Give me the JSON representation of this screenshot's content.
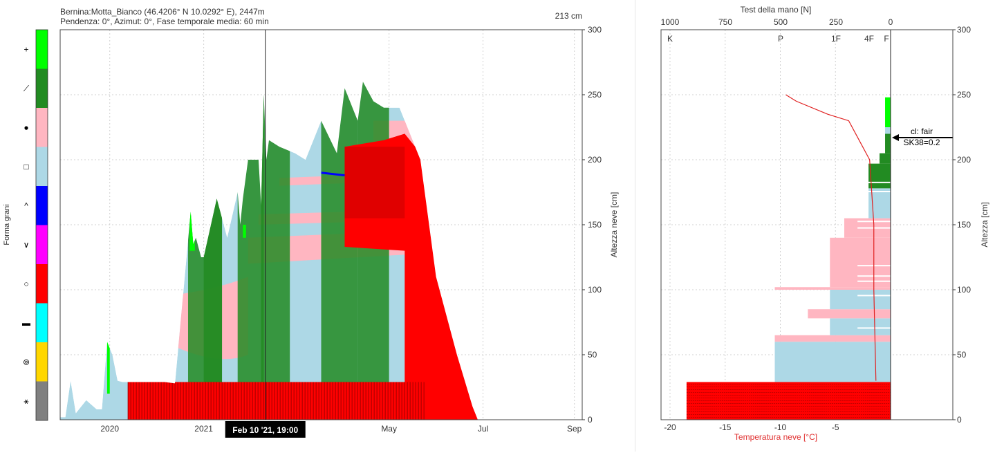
{
  "header": {
    "line1": "Bernina:Motta_Bianco (46.4206° N 10.0292° E), 2447m",
    "line2": "Pendenza: 0°, Azimut: 0°, Fase temporale media: 60 min",
    "current_depth": "213 cm"
  },
  "legend": {
    "title": "Forma grani",
    "items": [
      {
        "symbol": "+",
        "color": "#00ff00"
      },
      {
        "symbol": "⟋",
        "color": "#228b22"
      },
      {
        "symbol": "●",
        "color": "#ffb6c1"
      },
      {
        "symbol": "□",
        "color": "#add8e6"
      },
      {
        "symbol": "^",
        "color": "#0000ff"
      },
      {
        "symbol": "∨",
        "color": "#ff00ff"
      },
      {
        "symbol": "○",
        "color": "#ff0000"
      },
      {
        "symbol": "▬",
        "color": "#00ffff"
      },
      {
        "symbol": "⊚",
        "color": "#ffd700"
      },
      {
        "symbol": "⚹",
        "color": "#808080"
      }
    ]
  },
  "chart_data": [
    {
      "type": "area",
      "ylabel": "Altezza neve [cm]",
      "ylim": [
        0,
        300
      ],
      "y_ticks": [
        "0",
        "50",
        "100",
        "150",
        "200",
        "250",
        "300"
      ],
      "x_ticks": [
        "2020",
        "2021",
        "May",
        "Jul",
        "Sep"
      ],
      "x_tick_frac": [
        0.095,
        0.275,
        0.63,
        0.81,
        0.985
      ],
      "cursor": {
        "label": "Feb 10 '21, 19:00",
        "frac": 0.393
      },
      "series": [
        {
          "name": "total",
          "values_x": [
            0.0,
            0.01,
            0.02,
            0.03,
            0.05,
            0.07,
            0.08,
            0.09,
            0.1,
            0.11,
            0.12,
            0.13,
            0.2,
            0.2,
            0.2,
            0.22,
            0.25,
            0.255,
            0.26,
            0.27,
            0.275,
            0.3,
            0.32,
            0.34,
            0.345,
            0.35,
            0.36,
            0.38,
            0.385,
            0.39,
            0.395,
            0.4,
            0.42,
            0.45,
            0.47,
            0.5,
            0.53,
            0.545,
            0.57,
            0.58,
            0.6,
            0.62,
            0.65,
            0.69,
            0.7,
            0.71,
            0.72,
            0.74,
            0.76,
            0.79,
            0.8
          ],
          "values_y": [
            2,
            2,
            30,
            5,
            15,
            8,
            8,
            60,
            50,
            30,
            29,
            29,
            29,
            29,
            29,
            28,
            160,
            135,
            140,
            125,
            125,
            170,
            140,
            175,
            150,
            170,
            200,
            200,
            165,
            250,
            200,
            215,
            210,
            205,
            200,
            230,
            205,
            255,
            230,
            260,
            245,
            240,
            240,
            200,
            170,
            140,
            110,
            80,
            50,
            10,
            0
          ]
        },
        {
          "name": "red_base",
          "values_x": [
            0.085,
            0.13,
            0.14,
            0.62,
            0.62
          ],
          "values_y": [
            8,
            8,
            29,
            29,
            0
          ]
        }
      ]
    },
    {
      "type": "bar",
      "title": "Test della mano [N]",
      "xlabel": "Temperatura neve [°C]",
      "ylabel": "Altezza [cm]",
      "ylim": [
        0,
        300
      ],
      "x_ticks": [
        "-20",
        "-15",
        "-10",
        "-5"
      ],
      "hand_ticks": [
        "1000",
        "750",
        "500",
        "250",
        "0"
      ],
      "hardness_labels": [
        "K",
        "P",
        "1F",
        "4F",
        "F"
      ],
      "stability": {
        "line1": "cl: fair",
        "line2": "SK38=0.2",
        "height": 217
      },
      "temperature_profile": {
        "temp": [
          -5.0,
          -4.5,
          -3.0,
          -2.0,
          -1.5,
          -1.0,
          -0.8,
          -0.8,
          -0.7
        ],
        "height": [
          250,
          245,
          235,
          230,
          215,
          200,
          150,
          100,
          30
        ]
      },
      "layers": [
        {
          "bottom": 0,
          "top": 29,
          "hardness": 18.5,
          "color": "#ff0000"
        },
        {
          "bottom": 29,
          "top": 60,
          "hardness": 10.5,
          "color": "#add8e6"
        },
        {
          "bottom": 60,
          "top": 65,
          "hardness": 10.5,
          "color": "#ffb6c1"
        },
        {
          "bottom": 65,
          "top": 78,
          "hardness": 5.5,
          "color": "#add8e6"
        },
        {
          "bottom": 78,
          "top": 85,
          "hardness": 7.5,
          "color": "#ffb6c1"
        },
        {
          "bottom": 85,
          "top": 100,
          "hardness": 5.5,
          "color": "#add8e6"
        },
        {
          "bottom": 100,
          "top": 102,
          "hardness": 10.5,
          "color": "#ffb6c1"
        },
        {
          "bottom": 102,
          "top": 140,
          "hardness": 5.5,
          "color": "#ffb6c1"
        },
        {
          "bottom": 140,
          "top": 155,
          "hardness": 4.2,
          "color": "#ffb6c1"
        },
        {
          "bottom": 155,
          "top": 178,
          "hardness": 2.0,
          "color": "#add8e6"
        },
        {
          "bottom": 178,
          "top": 197,
          "hardness": 2.0,
          "color": "#228b22"
        },
        {
          "bottom": 197,
          "top": 205,
          "hardness": 1.0,
          "color": "#228b22"
        },
        {
          "bottom": 205,
          "top": 220,
          "hardness": 0.5,
          "color": "#228b22"
        },
        {
          "bottom": 220,
          "top": 225,
          "hardness": 0.5,
          "color": "#add8e6"
        },
        {
          "bottom": 225,
          "top": 248,
          "hardness": 0.5,
          "color": "#00ff00"
        }
      ]
    }
  ]
}
